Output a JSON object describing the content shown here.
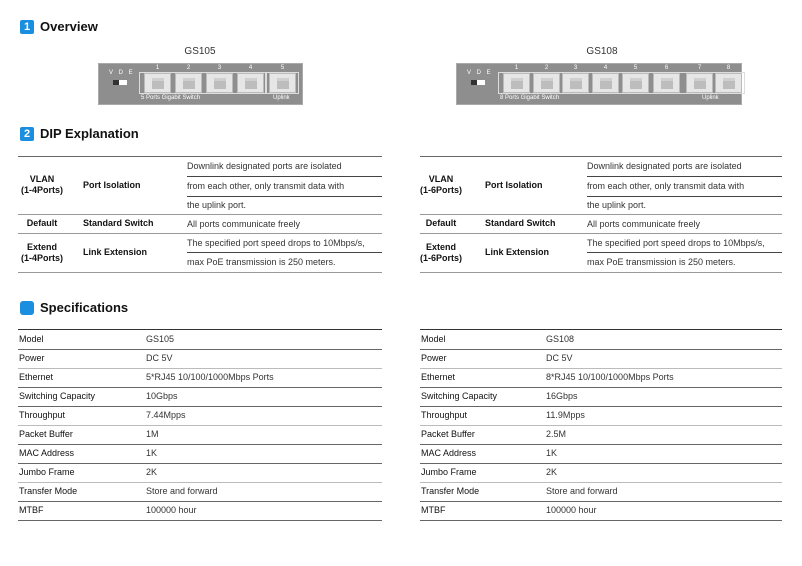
{
  "sections": {
    "overview": {
      "num": "1",
      "title": "Overview"
    },
    "dip": {
      "num": "2",
      "title": "DIP Explanation"
    },
    "specs": {
      "title": "Specifications"
    }
  },
  "switches": [
    {
      "model": "GS105",
      "switch_labels": "V D E",
      "ports": [
        "1",
        "2",
        "3",
        "4",
        "5"
      ],
      "caption": "5 Ports Gigabit Switch",
      "uplink": "Uplink"
    },
    {
      "model": "GS108",
      "switch_labels": "V D E",
      "ports": [
        "1",
        "2",
        "3",
        "4",
        "5",
        "6",
        "7",
        "8"
      ],
      "caption": "8 Ports Gigabit Switch",
      "uplink": "Uplink"
    }
  ],
  "dip_tables": [
    {
      "rows": [
        {
          "mode": "VLAN",
          "range": "(1-4Ports)",
          "function": "Port Isolation",
          "desc": [
            "Downlink designated ports are isolated",
            "from each other, only transmit data with",
            "the uplink port."
          ]
        },
        {
          "mode": "Default",
          "range": "",
          "function": "Standard Switch",
          "desc": [
            "All ports communicate freely"
          ]
        },
        {
          "mode": "Extend",
          "range": "(1-4Ports)",
          "function": "Link Extension",
          "desc": [
            "The specified port speed drops to 10Mbps/s,",
            "max PoE transmission is 250 meters."
          ]
        }
      ]
    },
    {
      "rows": [
        {
          "mode": "VLAN",
          "range": "(1-6Ports)",
          "function": "Port Isolation",
          "desc": [
            "Downlink designated ports are isolated",
            "from each other, only transmit data with",
            "the uplink port."
          ]
        },
        {
          "mode": "Default",
          "range": "",
          "function": "Standard Switch",
          "desc": [
            "All ports communicate freely"
          ]
        },
        {
          "mode": "Extend",
          "range": "(1-6Ports)",
          "function": "Link Extension",
          "desc": [
            "The specified port speed drops to 10Mbps/s,",
            "max PoE transmission is 250 meters."
          ]
        }
      ]
    }
  ],
  "spec_tables": [
    {
      "rows": [
        [
          "Model",
          "GS105"
        ],
        [
          "Power",
          "DC 5V"
        ],
        [
          "Ethernet",
          "5*RJ45 10/100/1000Mbps Ports"
        ],
        [
          "Switching Capacity",
          "10Gbps"
        ],
        [
          "Throughput",
          "7.44Mpps"
        ],
        [
          "Packet Buffer",
          "1M"
        ],
        [
          "MAC Address",
          "1K"
        ],
        [
          "Jumbo Frame",
          "2K"
        ],
        [
          "Transfer Mode",
          "Store and forward"
        ],
        [
          "MTBF",
          "100000 hour"
        ]
      ]
    },
    {
      "rows": [
        [
          "Model",
          "GS108"
        ],
        [
          "Power",
          "DC 5V"
        ],
        [
          "Ethernet",
          "8*RJ45 10/100/1000Mbps Ports"
        ],
        [
          "Switching Capacity",
          "16Gbps"
        ],
        [
          "Throughput",
          "11.9Mpps"
        ],
        [
          "Packet Buffer",
          "2.5M"
        ],
        [
          "MAC Address",
          "1K"
        ],
        [
          "Jumbo Frame",
          "2K"
        ],
        [
          "Transfer Mode",
          "Store and forward"
        ],
        [
          "MTBF",
          "100000 hour"
        ]
      ]
    }
  ],
  "colors": {
    "accent": "#1a8fe0",
    "switch_body": "#8e8e8e"
  }
}
